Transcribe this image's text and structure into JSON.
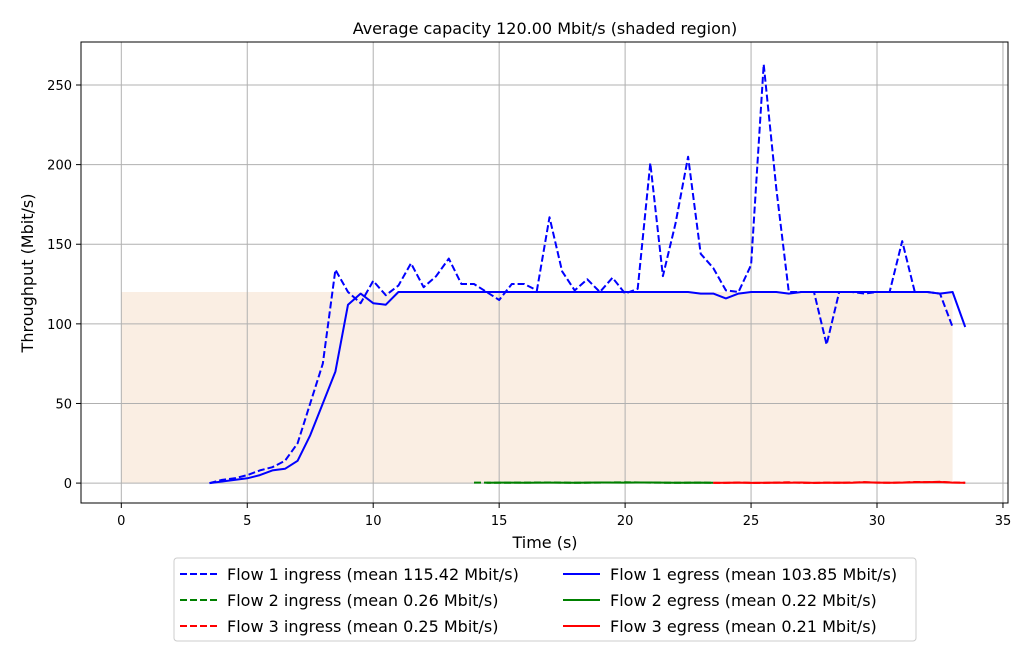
{
  "chart_data": {
    "type": "line",
    "title": "Average capacity 120.00 Mbit/s (shaded region)",
    "xlabel": "Time (s)",
    "ylabel": "Throughput (Mbit/s)",
    "xlim": [
      -1.6,
      35.2
    ],
    "ylim": [
      -12.5,
      277
    ],
    "xticks": [
      0,
      5,
      10,
      15,
      20,
      25,
      30,
      35
    ],
    "yticks": [
      0,
      50,
      100,
      150,
      200,
      250
    ],
    "grid": true,
    "legend_position": "below",
    "shaded_region": {
      "x": [
        0,
        33
      ],
      "y": [
        0,
        120
      ],
      "color": "#faeee3"
    },
    "series": [
      {
        "name": "Flow 1 ingress (mean 115.42 Mbit/s)",
        "color": "#0000ff",
        "style": "dashed",
        "x": [
          3.5,
          4,
          4.5,
          5,
          5.5,
          6,
          6.5,
          7,
          7.5,
          8,
          8.5,
          9,
          9.5,
          10,
          10.5,
          11,
          11.5,
          12,
          12.5,
          13,
          13.5,
          14,
          14.5,
          15,
          15.5,
          16,
          16.5,
          17,
          17.5,
          18,
          18.5,
          19,
          19.5,
          20,
          20.5,
          21,
          21.5,
          22,
          22.5,
          23,
          23.5,
          24,
          24.5,
          25,
          25.5,
          26,
          26.5,
          27,
          27.5,
          28,
          28.5,
          29,
          29.5,
          30,
          30.5,
          31,
          31.5,
          32,
          32.5,
          33
        ],
        "y": [
          0,
          2,
          3,
          5,
          8,
          10,
          14,
          25,
          50,
          75,
          134,
          120,
          113,
          127,
          118,
          124,
          138,
          123,
          130,
          141,
          125,
          125,
          120,
          115,
          125,
          125,
          121,
          167,
          133,
          121,
          128,
          120,
          129,
          119,
          122,
          201,
          130,
          163,
          205,
          144,
          135,
          121,
          120,
          137,
          263,
          185,
          120,
          120,
          120,
          87,
          120,
          120,
          119,
          120,
          120,
          152,
          120,
          120,
          119,
          98
        ]
      },
      {
        "name": "Flow 1 egress (mean 103.85 Mbit/s)",
        "color": "#0000ff",
        "style": "solid",
        "x": [
          3.5,
          4,
          4.5,
          5,
          5.5,
          6,
          6.5,
          7,
          7.5,
          8,
          8.5,
          9,
          9.5,
          10,
          10.5,
          11,
          11.5,
          12,
          12.5,
          13,
          13.5,
          14,
          14.5,
          15,
          16,
          17,
          18,
          19,
          20,
          21,
          21.5,
          22,
          22.5,
          23,
          23.5,
          24,
          24.5,
          25,
          25.5,
          26,
          26.5,
          27,
          27.5,
          28,
          28.5,
          29,
          29.5,
          30,
          30.5,
          31,
          31.5,
          32,
          32.5,
          33,
          33.5
        ],
        "y": [
          0,
          1,
          2,
          3,
          5,
          8,
          9,
          14,
          30,
          50,
          70,
          112,
          119,
          113,
          112,
          120,
          120,
          120,
          120,
          120,
          120,
          120,
          120,
          120,
          120,
          120,
          120,
          120,
          120,
          120,
          120,
          120,
          120,
          119,
          119,
          116,
          119,
          120,
          120,
          120,
          119,
          120,
          120,
          120,
          120,
          120,
          120,
          120,
          120,
          120,
          120,
          120,
          119,
          120,
          98
        ]
      },
      {
        "name": "Flow 2 ingress (mean 0.26 Mbit/s)",
        "color": "#008000",
        "style": "dashed",
        "x": [
          14,
          15,
          16,
          17,
          18,
          19,
          20,
          21,
          22,
          23,
          23.5
        ],
        "y": [
          0.3,
          0.2,
          0.3,
          0.4,
          0.2,
          0.3,
          0.5,
          0.3,
          0.2,
          0.3,
          0.2
        ]
      },
      {
        "name": "Flow 2 egress (mean 0.22 Mbit/s)",
        "color": "#008000",
        "style": "solid",
        "x": [
          14.5,
          15,
          16,
          17,
          18,
          19,
          20,
          21,
          22,
          23,
          23.5
        ],
        "y": [
          0.2,
          0.3,
          0.2,
          0.3,
          0.2,
          0.4,
          0.3,
          0.4,
          0.2,
          0.3,
          0.2
        ]
      },
      {
        "name": "Flow 3 ingress (mean 0.25 Mbit/s)",
        "color": "#ff0000",
        "style": "dashed",
        "x": [
          23.5,
          24,
          24.5,
          25,
          25.5,
          26,
          26.5,
          27,
          27.5,
          28,
          28.5,
          29,
          29.5,
          30,
          30.5,
          31,
          31.5,
          32,
          32.5,
          33,
          33.5
        ],
        "y": [
          0.2,
          0.1,
          0.4,
          0.2,
          0.1,
          0.3,
          0.5,
          0.2,
          0.1,
          0.3,
          0.2,
          0.4,
          0.6,
          0.3,
          0.2,
          0.4,
          0.7,
          0.6,
          0.8,
          0.4,
          0.2
        ]
      },
      {
        "name": "Flow 3 egress (mean 0.21 Mbit/s)",
        "color": "#ff0000",
        "style": "solid",
        "x": [
          23.5,
          24,
          24.5,
          25,
          25.5,
          26,
          26.5,
          27,
          27.5,
          28,
          28.5,
          29,
          29.5,
          30,
          30.5,
          31,
          31.5,
          32,
          32.5,
          33,
          33.5
        ],
        "y": [
          0.1,
          0.2,
          0.3,
          0.1,
          0.2,
          0.3,
          0.2,
          0.4,
          0.1,
          0.2,
          0.3,
          0.2,
          0.5,
          0.3,
          0.2,
          0.3,
          0.5,
          0.6,
          0.7,
          0.3,
          0.2
        ]
      }
    ]
  }
}
